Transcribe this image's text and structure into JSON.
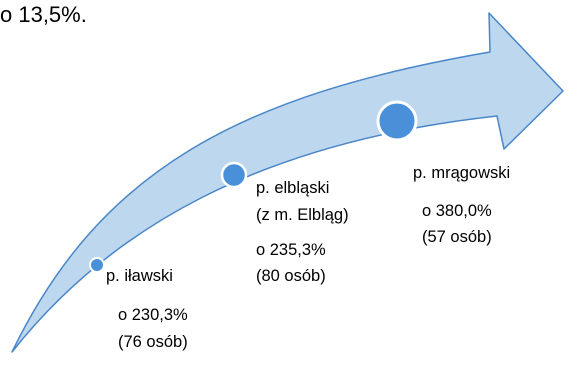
{
  "header": {
    "text": "o 13,5%."
  },
  "colors": {
    "arrow_fill": "#bdd7ee",
    "arrow_stroke": "#4a86c8",
    "marker_fill": "#4a90d9",
    "marker_stroke": "#ffffff"
  },
  "districts": [
    {
      "name_lines": [
        "p. iławski"
      ],
      "change": "o 230,3%",
      "persons": "(76 osób)"
    },
    {
      "name_lines": [
        "p. elbląski",
        "(z m. Elbląg)"
      ],
      "change": "o 235,3%",
      "persons": "(80 osób)"
    },
    {
      "name_lines": [
        "p. mrągowski"
      ],
      "change": "o 380,0%",
      "persons": "(57 osób)"
    }
  ]
}
